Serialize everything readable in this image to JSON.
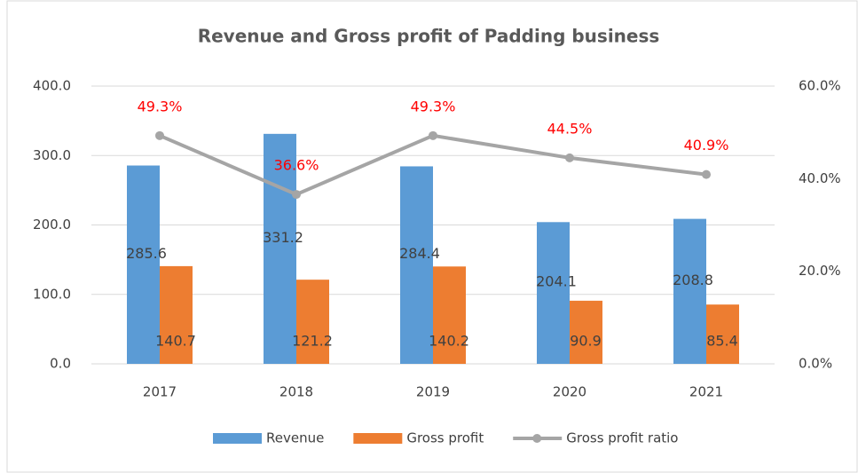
{
  "chart_data": {
    "type": "bar_line",
    "title": "Revenue and Gross profit of Padding business",
    "categories": [
      "2017",
      "2018",
      "2019",
      "2020",
      "2021"
    ],
    "series": [
      {
        "name": "Revenue",
        "color": "#5b9bd5",
        "type": "bar",
        "values": [
          285.6,
          331.2,
          284.4,
          204.1,
          208.8
        ]
      },
      {
        "name": "Gross profit",
        "color": "#ed7d31",
        "type": "bar",
        "values": [
          140.7,
          121.2,
          140.2,
          90.9,
          85.4
        ]
      },
      {
        "name": "Gross profit ratio",
        "color": "#a5a5a5",
        "type": "line",
        "axis": "y2",
        "values": [
          49.3,
          36.6,
          49.3,
          44.5,
          40.9
        ],
        "value_labels": [
          "49.3%",
          "36.6%",
          "49.3%",
          "44.5%",
          "40.9%"
        ],
        "label_color": "#ff0000"
      }
    ],
    "ylim": [
      0,
      400
    ],
    "yticks": [
      {
        "value": 0,
        "label": "0.0"
      },
      {
        "value": 100,
        "label": "100.0"
      },
      {
        "value": 200,
        "label": "200.0"
      },
      {
        "value": 300,
        "label": "300.0"
      },
      {
        "value": 400,
        "label": "400.0"
      }
    ],
    "y2lim": [
      0,
      60
    ],
    "y2ticks": [
      {
        "value": 0,
        "label": "0.0%"
      },
      {
        "value": 20,
        "label": "20.0%"
      },
      {
        "value": 40,
        "label": "40.0%"
      },
      {
        "value": 60,
        "label": "60.0%"
      }
    ],
    "grid": true,
    "legend": "bottom"
  }
}
